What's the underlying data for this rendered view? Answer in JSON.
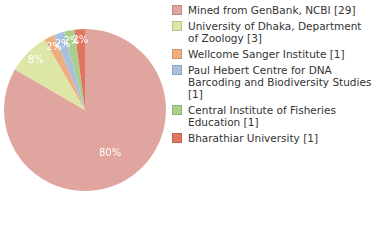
{
  "chart_data": {
    "type": "pie",
    "categories": [
      "Mined from GenBank, NCBI [29]",
      "University of Dhaka, Department of Zoology [3]",
      "Wellcome Sanger Institute [1]",
      "Paul Hebert Centre for DNA Barcoding and Biodiversity Studies [1]",
      "Central Institute of Fisheries Education [1]",
      "Bharathiar University [1]"
    ],
    "values": [
      80,
      8,
      2,
      2,
      2,
      2
    ],
    "value_labels": [
      "80%",
      "8%",
      "2%",
      "2%",
      "2%",
      "2%"
    ],
    "colors": [
      "#e0a59e",
      "#dde5a7",
      "#efae7e",
      "#a9bfe0",
      "#a9cf8d",
      "#e0765f"
    ],
    "data_labels": true,
    "legend": "right"
  }
}
